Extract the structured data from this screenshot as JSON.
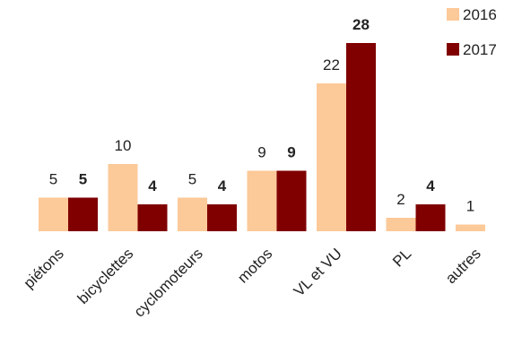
{
  "chart_data": {
    "type": "bar",
    "categories": [
      "piétons",
      "bicyclettes",
      "cyclomoteurs",
      "motos",
      "VL et VU",
      "PL",
      "autres"
    ],
    "series": [
      {
        "name": "2016",
        "color": "#FCC999",
        "values": [
          5,
          10,
          5,
          9,
          22,
          2,
          1
        ]
      },
      {
        "name": "2017",
        "color": "#800000",
        "values": [
          5,
          4,
          4,
          9,
          28,
          4,
          null
        ]
      }
    ],
    "title": "",
    "xlabel": "",
    "ylabel": "",
    "ylim": [
      0,
      28
    ],
    "grid": false,
    "legend": "top-right"
  }
}
